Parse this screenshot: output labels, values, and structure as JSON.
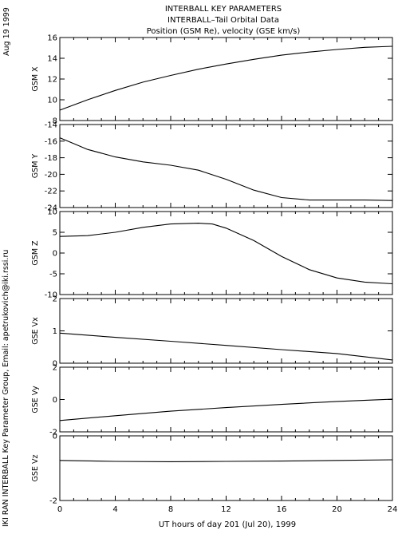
{
  "header": {
    "date_stamp": "Aug 19 1999",
    "title_lines": [
      "INTERBALL KEY PARAMETERS",
      "INTERBALL–Tail Orbital Data",
      "Position (GSM Re), velocity (GSE km/s)"
    ]
  },
  "side_label": "IKI RAN INTERBALL Key Parameter Group, Email: apetrukovich@iki.rssi.ru",
  "chart_data": {
    "type": "line",
    "x_axis": {
      "label": "UT hours of day 201 (Jul 20), 1999",
      "range": [
        0,
        24
      ],
      "ticks": [
        0,
        4,
        8,
        12,
        16,
        20,
        24
      ]
    },
    "panels": [
      {
        "ylabel": "GSM X",
        "ylim": [
          8,
          16
        ],
        "yticks": [
          8,
          10,
          12,
          14,
          16
        ],
        "x": [
          0,
          2,
          4,
          6,
          8,
          10,
          12,
          14,
          16,
          18,
          20,
          22,
          24
        ],
        "y": [
          9.0,
          10.0,
          10.9,
          11.7,
          12.35,
          12.95,
          13.45,
          13.9,
          14.3,
          14.6,
          14.85,
          15.05,
          15.15
        ]
      },
      {
        "ylabel": "GSM Y",
        "ylim": [
          -24,
          -14
        ],
        "yticks": [
          -24,
          -22,
          -20,
          -18,
          -16,
          -14
        ],
        "x": [
          0,
          1,
          2,
          4,
          6,
          8,
          10,
          12,
          14,
          16,
          18,
          20,
          22,
          24
        ],
        "y": [
          -15.6,
          -16.3,
          -17.0,
          -17.9,
          -18.5,
          -18.9,
          -19.5,
          -20.6,
          -21.9,
          -22.8,
          -23.1,
          -23.1,
          -23.1,
          -23.15
        ]
      },
      {
        "ylabel": "GSM Z",
        "ylim": [
          -10,
          10
        ],
        "yticks": [
          -10,
          -5,
          0,
          5,
          10
        ],
        "x": [
          0,
          2,
          4,
          6,
          8,
          10,
          11,
          12,
          14,
          16,
          18,
          20,
          22,
          24
        ],
        "y": [
          4.0,
          4.2,
          5.0,
          6.2,
          7.0,
          7.2,
          7.0,
          6.0,
          3.0,
          -0.8,
          -4.0,
          -6.0,
          -7.0,
          -7.4
        ]
      },
      {
        "ylabel": "GSE Vx",
        "ylim": [
          0,
          2
        ],
        "yticks": [
          0,
          1,
          2
        ],
        "x": [
          0,
          4,
          8,
          12,
          16,
          20,
          24
        ],
        "y": [
          0.93,
          0.8,
          0.68,
          0.55,
          0.42,
          0.3,
          0.1
        ]
      },
      {
        "ylabel": "GSE Vy",
        "ylim": [
          -2,
          2
        ],
        "yticks": [
          -2,
          0,
          2
        ],
        "x": [
          0,
          4,
          8,
          12,
          16,
          20,
          24
        ],
        "y": [
          -1.3,
          -1.0,
          -0.72,
          -0.5,
          -0.3,
          -0.12,
          0.02
        ]
      },
      {
        "ylabel": "GSE Vz",
        "ylim": [
          -2,
          0
        ],
        "yticks": [
          -2,
          0
        ],
        "x": [
          0,
          4,
          8,
          12,
          16,
          20,
          24
        ],
        "y": [
          -0.76,
          -0.79,
          -0.8,
          -0.79,
          -0.78,
          -0.76,
          -0.74
        ]
      }
    ]
  }
}
